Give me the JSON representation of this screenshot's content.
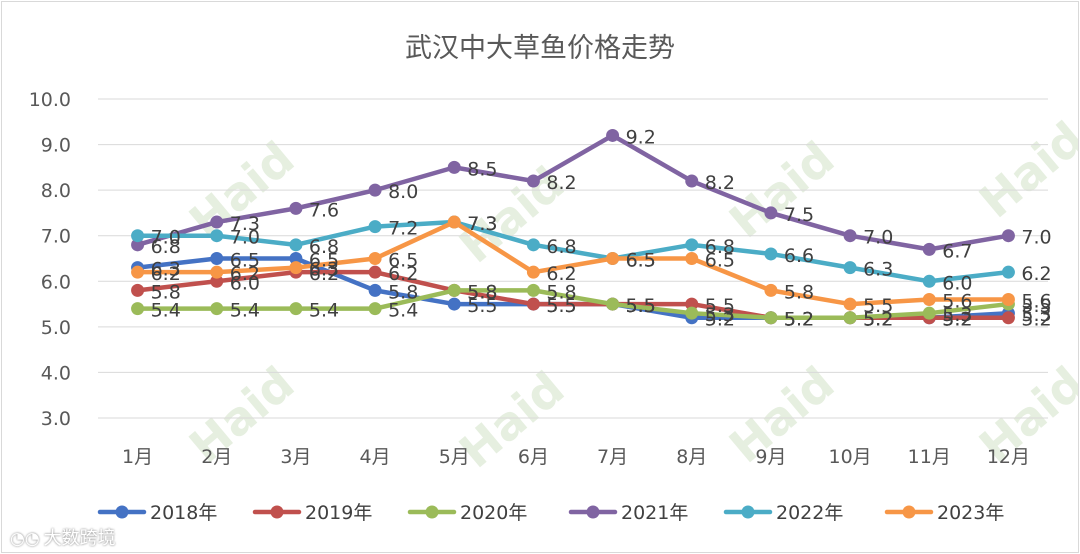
{
  "chart_data": {
    "type": "line",
    "title": "武汉中大草鱼价格走势",
    "xlabel": "",
    "ylabel": "",
    "categories": [
      "1月",
      "2月",
      "3月",
      "4月",
      "5月",
      "6月",
      "7月",
      "8月",
      "9月",
      "10月",
      "11月",
      "12月"
    ],
    "ylim": [
      3.0,
      10.0
    ],
    "yticks": [
      "3.0",
      "4.0",
      "5.0",
      "6.0",
      "7.0",
      "8.0",
      "9.0",
      "10.0"
    ],
    "grid": true,
    "legend": "bottom",
    "series": [
      {
        "name": "2018年",
        "color": "#4472c4",
        "values": [
          6.3,
          6.5,
          6.5,
          5.8,
          5.5,
          5.5,
          5.5,
          5.2,
          5.2,
          5.2,
          5.2,
          5.3
        ]
      },
      {
        "name": "2019年",
        "color": "#c0504d",
        "values": [
          5.8,
          6.0,
          6.2,
          6.2,
          5.8,
          5.5,
          5.5,
          5.5,
          5.2,
          5.2,
          5.2,
          5.2
        ]
      },
      {
        "name": "2020年",
        "color": "#9bbb59",
        "values": [
          5.4,
          5.4,
          5.4,
          5.4,
          5.8,
          5.8,
          5.5,
          5.3,
          5.2,
          5.2,
          5.3,
          5.5
        ]
      },
      {
        "name": "2021年",
        "color": "#8064a2",
        "values": [
          6.8,
          7.3,
          7.6,
          8.0,
          8.5,
          8.2,
          9.2,
          8.2,
          7.5,
          7.0,
          6.7,
          7.0
        ]
      },
      {
        "name": "2022年",
        "color": "#4bacc6",
        "values": [
          7.0,
          7.0,
          6.8,
          7.2,
          7.3,
          6.8,
          6.5,
          6.8,
          6.6,
          6.3,
          6.0,
          6.2
        ]
      },
      {
        "name": "2023年",
        "color": "#f79646",
        "values": [
          6.2,
          6.2,
          6.3,
          6.5,
          7.3,
          6.2,
          6.5,
          6.5,
          5.8,
          5.5,
          5.6,
          5.6
        ]
      }
    ],
    "label_format": "0.0"
  },
  "watermark": {
    "text": "大数跨境",
    "brand": "Haid"
  }
}
